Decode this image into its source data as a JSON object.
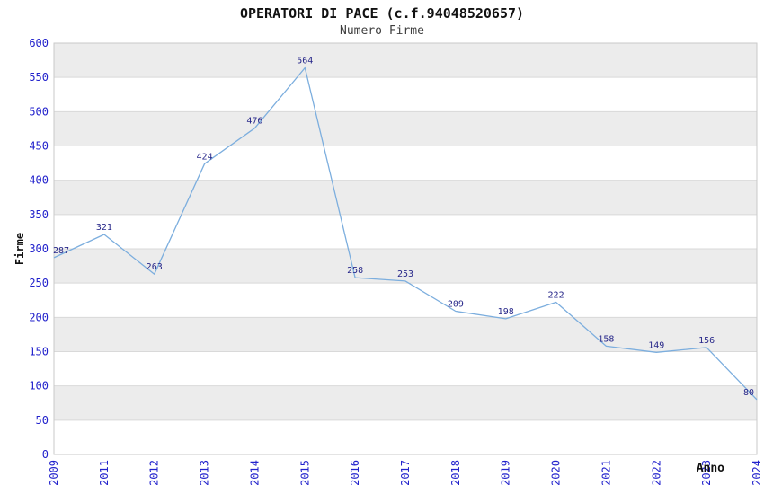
{
  "chart_data": {
    "type": "line",
    "title": "OPERATORI DI PACE (c.f.94048520657)",
    "subtitle": "Numero Firme",
    "xlabel": "Anno",
    "ylabel": "Firme",
    "categories": [
      "2009",
      "2011",
      "2012",
      "2013",
      "2014",
      "2015",
      "2016",
      "2017",
      "2018",
      "2019",
      "2020",
      "2021",
      "2022",
      "2023",
      "2024"
    ],
    "values": [
      287,
      321,
      263,
      424,
      476,
      564,
      258,
      253,
      209,
      198,
      222,
      158,
      149,
      156,
      80
    ],
    "ylim": [
      0,
      600
    ],
    "ytick_step": 50,
    "yticks": [
      0,
      50,
      100,
      150,
      200,
      250,
      300,
      350,
      400,
      450,
      500,
      550,
      600
    ],
    "grid": true,
    "legend_position": "none",
    "band_style": "alternating-horizontal",
    "colors": {
      "line": "#7caede",
      "data_label": "#28288a",
      "tick_label": "#2222cc",
      "band": "#ececec",
      "gridline": "#d9d9d9",
      "plot_border": "#c9c9c9",
      "title": "#111111",
      "subtitle": "#3f3f3f",
      "axis_title": "#111111",
      "plot_background": "#ffffff"
    }
  }
}
